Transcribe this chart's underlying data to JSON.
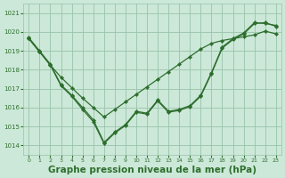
{
  "background_color": "#cce8d8",
  "grid_color": "#99c4aa",
  "line_color": "#2d6e2d",
  "marker_color": "#2d6e2d",
  "xlabel": "Graphe pression niveau de la mer (hPa)",
  "xlabel_fontsize": 7.5,
  "ylim": [
    1013.5,
    1021.5
  ],
  "xlim": [
    -0.5,
    23.5
  ],
  "yticks": [
    1014,
    1015,
    1016,
    1017,
    1018,
    1019,
    1020,
    1021
  ],
  "xticks": [
    0,
    1,
    2,
    3,
    4,
    5,
    6,
    7,
    8,
    9,
    10,
    11,
    12,
    13,
    14,
    15,
    16,
    17,
    18,
    19,
    20,
    21,
    22,
    23
  ],
  "series1_x": [
    0,
    1,
    2,
    3,
    4,
    5,
    6,
    7,
    8,
    9,
    10,
    11,
    12,
    13,
    14,
    15,
    16,
    17,
    18,
    19,
    20,
    21,
    22,
    23
  ],
  "series1_y": [
    1019.65,
    1018.95,
    1018.25,
    1017.6,
    1017.05,
    1016.5,
    1016.0,
    1015.5,
    1015.9,
    1016.3,
    1016.7,
    1017.1,
    1017.5,
    1017.9,
    1018.3,
    1018.7,
    1019.1,
    1019.4,
    1019.55,
    1019.65,
    1019.75,
    1019.85,
    1020.05,
    1019.9
  ],
  "series2_x": [
    0,
    1,
    2,
    3,
    4,
    5,
    6,
    7,
    8,
    9,
    10,
    11,
    12,
    13,
    14,
    15,
    16,
    17,
    18,
    19,
    20,
    21,
    22,
    23
  ],
  "series2_y": [
    1019.65,
    1018.95,
    1018.25,
    1017.15,
    1016.6,
    1015.9,
    1015.25,
    1014.1,
    1014.65,
    1015.05,
    1015.75,
    1015.65,
    1016.35,
    1015.75,
    1015.85,
    1016.05,
    1016.6,
    1017.8,
    1019.15,
    1019.6,
    1019.9,
    1020.45,
    1020.5,
    1020.3
  ],
  "series3_x": [
    0,
    1,
    2,
    3,
    4,
    5,
    6,
    7,
    8,
    9,
    10,
    11,
    12,
    13,
    14,
    15,
    16,
    17,
    18,
    19,
    20,
    21,
    22,
    23
  ],
  "series3_y": [
    1019.7,
    1019.0,
    1018.3,
    1017.2,
    1016.65,
    1016.0,
    1015.35,
    1014.15,
    1014.7,
    1015.1,
    1015.8,
    1015.7,
    1016.4,
    1015.8,
    1015.9,
    1016.1,
    1016.65,
    1017.85,
    1019.2,
    1019.65,
    1019.95,
    1020.5,
    1020.45,
    1020.35
  ]
}
